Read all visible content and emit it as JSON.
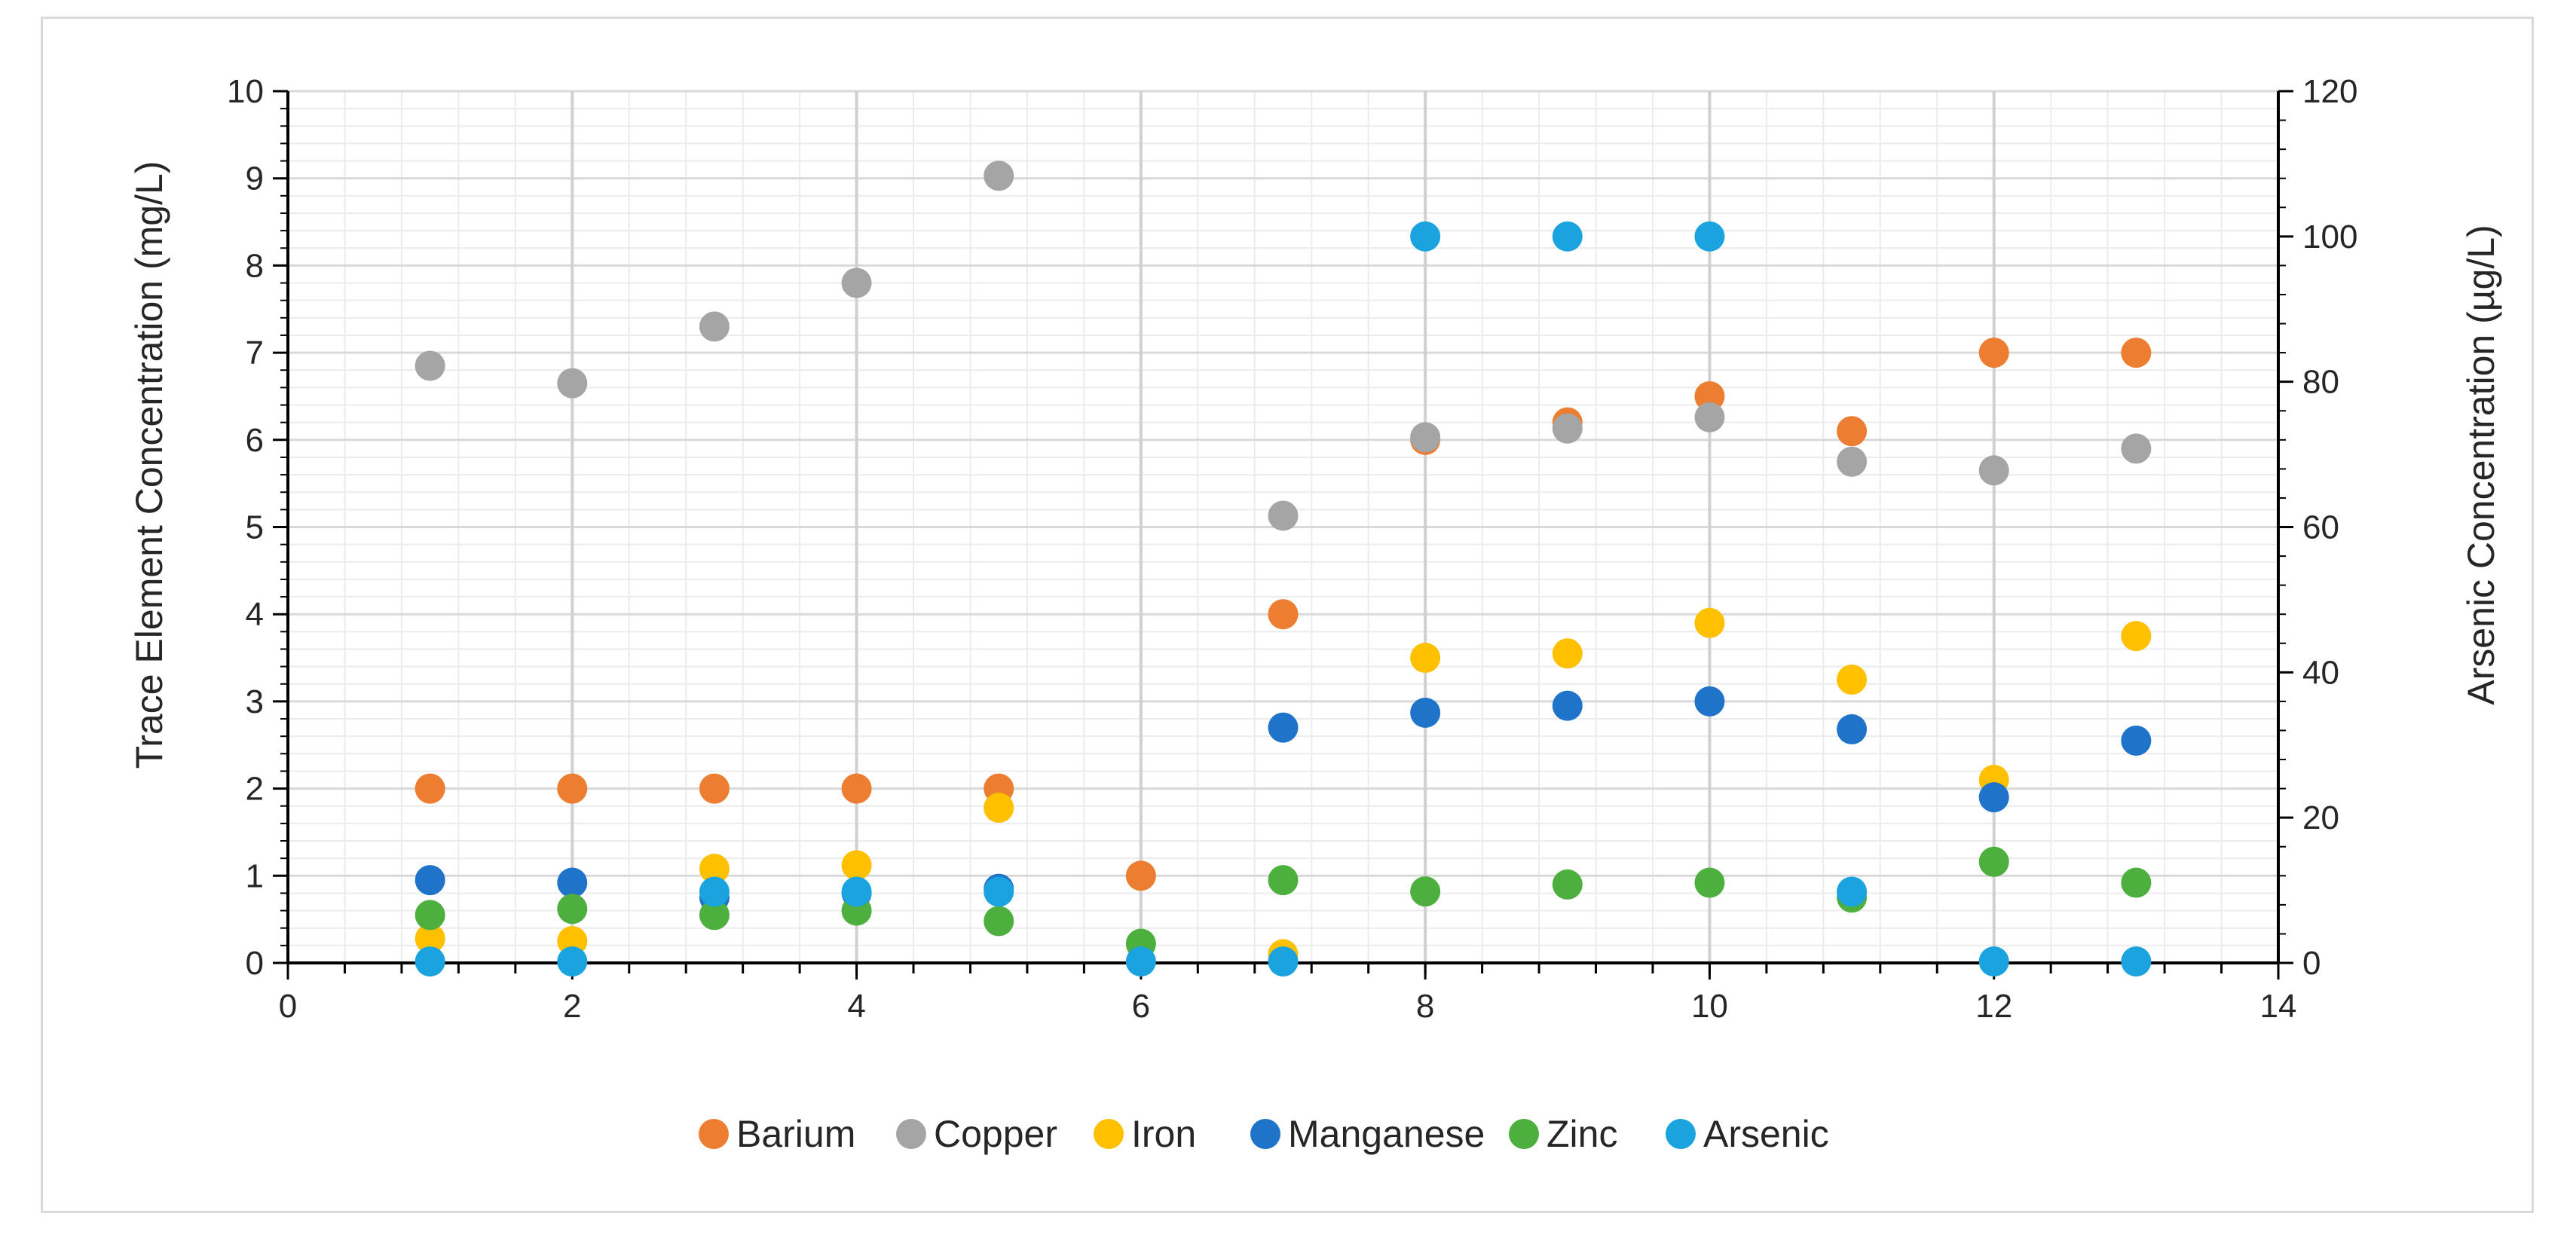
{
  "chart_data": {
    "type": "scatter",
    "title": "",
    "xlabel": "",
    "ylabel": "Trace Element Concentration (mg/L)",
    "y2label": "Arsenic Concentration (µg/L)",
    "xlim": [
      0,
      14
    ],
    "ylim": [
      0,
      10
    ],
    "y2lim": [
      0,
      120
    ],
    "x_ticks": [
      0,
      2,
      4,
      6,
      8,
      10,
      12,
      14
    ],
    "y_ticks": [
      0,
      1,
      2,
      3,
      4,
      5,
      6,
      7,
      8,
      9,
      10
    ],
    "y2_ticks": [
      0,
      20,
      40,
      60,
      80,
      100,
      120
    ],
    "grid": true,
    "legend_position": "bottom",
    "series": [
      {
        "name": "Barium",
        "color": "#ED7D31",
        "axis": "left",
        "x": [
          1,
          2,
          3,
          4,
          5,
          6,
          7,
          8,
          9,
          10,
          11,
          12,
          13
        ],
        "y": [
          2.0,
          2.0,
          2.0,
          2.0,
          2.0,
          1.0,
          4.0,
          6.0,
          6.2,
          6.5,
          6.1,
          7.0,
          7.0
        ]
      },
      {
        "name": "Copper",
        "color": "#A5A5A5",
        "axis": "left",
        "x": [
          1,
          2,
          3,
          4,
          5,
          7,
          8,
          9,
          10,
          11,
          12,
          13
        ],
        "y": [
          6.85,
          6.65,
          7.3,
          7.8,
          9.03,
          5.13,
          6.03,
          6.13,
          6.26,
          5.75,
          5.65,
          5.9
        ]
      },
      {
        "name": "Iron",
        "color": "#FFC000",
        "axis": "left",
        "x": [
          1,
          2,
          3,
          4,
          5,
          7,
          8,
          9,
          10,
          11,
          12,
          13
        ],
        "y": [
          0.28,
          0.25,
          1.08,
          1.12,
          1.78,
          0.1,
          3.5,
          3.55,
          3.9,
          3.25,
          2.1,
          3.75
        ]
      },
      {
        "name": "Manganese",
        "color": "#1F74C9",
        "axis": "left",
        "x": [
          1,
          2,
          3,
          4,
          5,
          7,
          8,
          9,
          10,
          11,
          12,
          13
        ],
        "y": [
          0.95,
          0.92,
          0.75,
          0.8,
          0.85,
          2.7,
          2.87,
          2.95,
          3.0,
          2.68,
          1.9,
          2.55
        ]
      },
      {
        "name": "Zinc",
        "color": "#4CAF3E",
        "axis": "left",
        "x": [
          1,
          2,
          3,
          4,
          5,
          6,
          7,
          8,
          9,
          10,
          11,
          12,
          13
        ],
        "y": [
          0.55,
          0.62,
          0.55,
          0.6,
          0.48,
          0.22,
          0.95,
          0.82,
          0.9,
          0.92,
          0.75,
          1.16,
          0.92
        ]
      },
      {
        "name": "Arsenic",
        "color": "#1AA3DF",
        "axis": "right",
        "x": [
          1,
          2,
          3,
          4,
          5,
          6,
          7,
          8,
          9,
          10,
          11,
          12,
          13
        ],
        "y": [
          0.2,
          0.2,
          9.8,
          9.8,
          9.8,
          0.2,
          0.2,
          100,
          100,
          100,
          9.8,
          0.2,
          0.2
        ]
      }
    ]
  }
}
